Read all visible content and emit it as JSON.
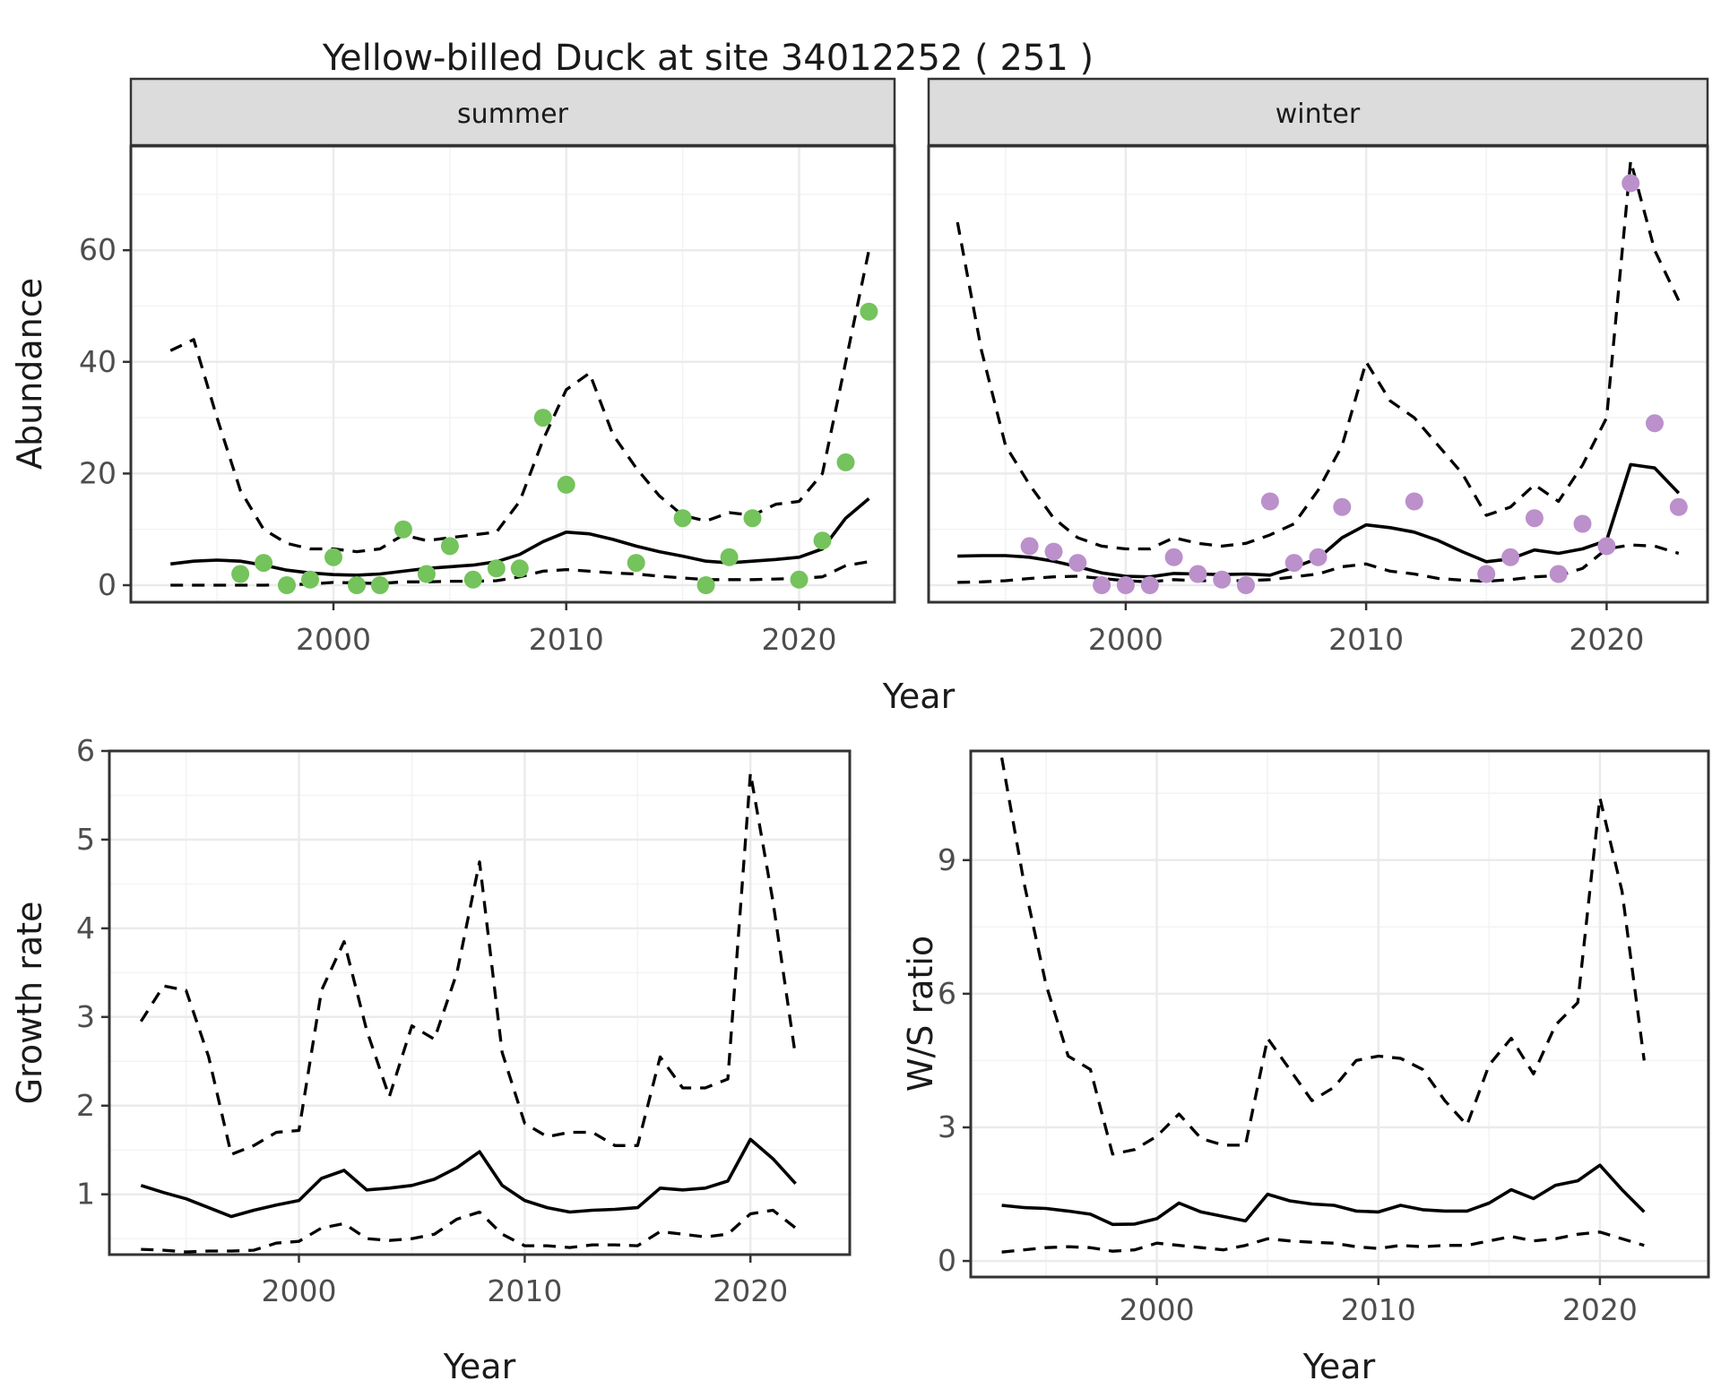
{
  "title": "Yellow-billed Duck at site 34012252 ( 251 )",
  "labels": {
    "x_axis": "Year",
    "y_abundance": "Abundance",
    "y_growth": "Growth rate",
    "y_ws": "W/S ratio"
  },
  "facets": {
    "summer": "summer",
    "winter": "winter"
  },
  "colors": {
    "observed_summer": "#74C35C",
    "observed_winter": "#BB90CB",
    "fit_line": "#000000",
    "ci_line": "#000000",
    "strip_background": "#DCDCDC",
    "panel_border": "#333333",
    "gridline": "#EBEBEB",
    "tick_text": "#4D4D4D"
  },
  "chart_data": [
    {
      "id": "abundance_summer",
      "type": "line",
      "facet": "summer",
      "xlabel": "Year",
      "ylabel": "Abundance",
      "xlim": [
        1991.3,
        2024.1
      ],
      "ylim": [
        -3.05,
        78.65
      ],
      "x_ticks": [
        2000,
        2010,
        2020
      ],
      "x_minor": [
        1995,
        2005,
        2015
      ],
      "y_ticks": [
        0,
        20,
        40,
        60
      ],
      "y_minor": [
        10,
        30,
        50,
        70
      ],
      "grid": true,
      "legend": "none",
      "years": [
        1993,
        1994,
        1995,
        1996,
        1997,
        1998,
        1999,
        2000,
        2001,
        2002,
        2003,
        2004,
        2005,
        2006,
        2007,
        2008,
        2009,
        2010,
        2011,
        2012,
        2013,
        2014,
        2015,
        2016,
        2017,
        2018,
        2019,
        2020,
        2021,
        2022,
        2023
      ],
      "series": [
        {
          "name": "lower_ci",
          "style": "dashed",
          "values": [
            0,
            0,
            0,
            0,
            0,
            0.1,
            0.2,
            0.5,
            0.4,
            0.3,
            0.6,
            0.6,
            0.7,
            0.7,
            0.8,
            1.5,
            2.5,
            2.8,
            2.5,
            2.2,
            2.0,
            1.6,
            1.3,
            1.0,
            1.0,
            1.0,
            1.1,
            1.2,
            1.5,
            3.5,
            4.2
          ]
        },
        {
          "name": "upper_ci",
          "style": "dashed",
          "values": [
            42,
            44,
            30,
            17,
            10,
            7.5,
            6.5,
            6.5,
            6.0,
            6.5,
            9.0,
            8.0,
            8.5,
            9.0,
            9.5,
            15,
            26,
            35,
            38,
            27,
            21,
            16,
            12.5,
            11.5,
            13,
            12.5,
            14.5,
            15,
            20,
            40,
            60
          ]
        },
        {
          "name": "fit",
          "style": "solid",
          "values": [
            3.8,
            4.3,
            4.5,
            4.3,
            3.6,
            2.7,
            2.2,
            1.9,
            1.8,
            2.0,
            2.5,
            3.0,
            3.3,
            3.6,
            4.2,
            5.5,
            7.8,
            9.5,
            9.2,
            8.2,
            7.0,
            6.0,
            5.2,
            4.3,
            4.0,
            4.3,
            4.6,
            5.0,
            6.5,
            12.0,
            15.5
          ]
        }
      ],
      "points": {
        "name": "observed",
        "color": "#74C35C",
        "years": [
          1996,
          1997,
          1998,
          1999,
          2000,
          2001,
          2002,
          2003,
          2004,
          2005,
          2006,
          2007,
          2008,
          2009,
          2010,
          2013,
          2015,
          2016,
          2017,
          2018,
          2020,
          2021,
          2022,
          2023
        ],
        "values": [
          2,
          4,
          0,
          1,
          5,
          0,
          0,
          10,
          2,
          7,
          1,
          3,
          3,
          30,
          18,
          4,
          12,
          0,
          5,
          12,
          1,
          8,
          22,
          49
        ]
      }
    },
    {
      "id": "abundance_winter",
      "type": "line",
      "facet": "winter",
      "xlabel": "Year",
      "ylabel": "Abundance",
      "xlim": [
        1991.8,
        2024.2
      ],
      "ylim": [
        -3.05,
        78.65
      ],
      "x_ticks": [
        2000,
        2010,
        2020
      ],
      "x_minor": [
        1995,
        2005,
        2015
      ],
      "y_ticks": [
        0,
        20,
        40,
        60
      ],
      "y_minor": [
        10,
        30,
        50,
        70
      ],
      "grid": true,
      "legend": "none",
      "years": [
        1993,
        1994,
        1995,
        1996,
        1997,
        1998,
        1999,
        2000,
        2001,
        2002,
        2003,
        2004,
        2005,
        2006,
        2007,
        2008,
        2009,
        2010,
        2011,
        2012,
        2013,
        2014,
        2015,
        2016,
        2017,
        2018,
        2019,
        2020,
        2021,
        2022,
        2023
      ],
      "series": [
        {
          "name": "lower_ci",
          "style": "dashed",
          "values": [
            0.5,
            0.6,
            0.8,
            1.2,
            1.5,
            1.6,
            1.2,
            0.8,
            0.6,
            1.0,
            0.8,
            0.8,
            0.8,
            1.0,
            1.5,
            2.0,
            3.3,
            3.8,
            2.5,
            2.0,
            1.2,
            0.9,
            0.7,
            1.0,
            1.5,
            1.7,
            3.0,
            6.5,
            7.2,
            7.0,
            5.7
          ]
        },
        {
          "name": "upper_ci",
          "style": "dashed",
          "values": [
            65,
            42,
            25,
            18,
            12,
            8.5,
            7,
            6.5,
            6.5,
            8.5,
            7.5,
            7,
            7.5,
            9,
            11,
            17,
            25,
            40,
            33,
            30,
            25,
            20,
            12.5,
            14,
            18,
            15,
            21.5,
            30,
            76,
            60,
            51
          ]
        },
        {
          "name": "fit",
          "style": "solid",
          "values": [
            5.2,
            5.3,
            5.3,
            5.0,
            4.3,
            3.3,
            2.2,
            1.6,
            1.5,
            2.1,
            2.0,
            1.9,
            2.0,
            1.8,
            3.2,
            4.8,
            8.5,
            10.8,
            10.3,
            9.5,
            8.0,
            6.0,
            4.2,
            4.7,
            6.3,
            5.7,
            6.5,
            8.0,
            21.6,
            21.0,
            16.5
          ]
        }
      ],
      "points": {
        "name": "observed",
        "color": "#BB90CB",
        "years": [
          1996,
          1997,
          1998,
          1999,
          2000,
          2001,
          2002,
          2003,
          2004,
          2005,
          2006,
          2007,
          2008,
          2009,
          2012,
          2015,
          2016,
          2017,
          2018,
          2019,
          2020,
          2021,
          2022,
          2023
        ],
        "values": [
          7,
          6,
          4,
          0,
          0,
          0,
          5,
          2,
          1,
          0,
          15,
          4,
          5,
          14,
          15,
          2,
          5,
          12,
          2,
          11,
          7,
          72,
          29,
          14
        ]
      }
    },
    {
      "id": "growth_rate",
      "type": "line",
      "xlabel": "Year",
      "ylabel": "Growth rate",
      "xlim": [
        1991.6,
        2024.4
      ],
      "ylim": [
        0.32,
        6.0
      ],
      "x_ticks": [
        2000,
        2010,
        2020
      ],
      "x_minor": [
        1995,
        2005,
        2015
      ],
      "y_ticks": [
        1,
        2,
        3,
        4,
        5,
        6
      ],
      "y_minor": [
        0.5,
        1.5,
        2.5,
        3.5,
        4.5,
        5.5
      ],
      "grid": true,
      "legend": "none",
      "years": [
        1993,
        1994,
        1995,
        1996,
        1997,
        1998,
        1999,
        2000,
        2001,
        2002,
        2003,
        2004,
        2005,
        2006,
        2007,
        2008,
        2009,
        2010,
        2011,
        2012,
        2013,
        2014,
        2015,
        2016,
        2017,
        2018,
        2019,
        2020,
        2021,
        2022
      ],
      "series": [
        {
          "name": "lower_ci",
          "style": "dashed",
          "values": [
            0.38,
            0.37,
            0.35,
            0.36,
            0.36,
            0.37,
            0.45,
            0.47,
            0.62,
            0.67,
            0.5,
            0.48,
            0.5,
            0.55,
            0.72,
            0.8,
            0.55,
            0.42,
            0.42,
            0.4,
            0.43,
            0.43,
            0.42,
            0.58,
            0.55,
            0.52,
            0.55,
            0.78,
            0.82,
            0.62
          ]
        },
        {
          "name": "upper_ci",
          "style": "dashed",
          "values": [
            2.95,
            3.35,
            3.3,
            2.55,
            1.45,
            1.55,
            1.7,
            1.72,
            3.3,
            3.85,
            2.85,
            2.1,
            2.9,
            2.75,
            3.5,
            4.75,
            2.6,
            1.8,
            1.65,
            1.7,
            1.7,
            1.55,
            1.55,
            2.55,
            2.2,
            2.2,
            2.3,
            5.75,
            4.3,
            2.55
          ]
        },
        {
          "name": "fit",
          "style": "solid",
          "values": [
            1.1,
            1.02,
            0.95,
            0.85,
            0.75,
            0.82,
            0.88,
            0.93,
            1.18,
            1.27,
            1.05,
            1.07,
            1.1,
            1.17,
            1.3,
            1.48,
            1.1,
            0.93,
            0.85,
            0.8,
            0.82,
            0.83,
            0.85,
            1.07,
            1.05,
            1.07,
            1.15,
            1.62,
            1.4,
            1.12
          ]
        }
      ]
    },
    {
      "id": "ws_ratio",
      "type": "line",
      "xlabel": "Year",
      "ylabel": "W/S ratio",
      "xlim": [
        1991.6,
        2024.9
      ],
      "ylim": [
        -0.36,
        11.45
      ],
      "x_ticks": [
        2000,
        2010,
        2020
      ],
      "x_minor": [
        1995,
        2005,
        2015
      ],
      "y_ticks": [
        0,
        3,
        6,
        9
      ],
      "y_minor": [
        1.5,
        4.5,
        7.5,
        10.5
      ],
      "grid": true,
      "legend": "none",
      "years": [
        1993,
        1994,
        1995,
        1996,
        1997,
        1998,
        1999,
        2000,
        2001,
        2002,
        2003,
        2004,
        2005,
        2006,
        2007,
        2008,
        2009,
        2010,
        2011,
        2012,
        2013,
        2014,
        2015,
        2016,
        2017,
        2018,
        2019,
        2020,
        2021,
        2022
      ],
      "series": [
        {
          "name": "lower_ci",
          "style": "dashed",
          "values": [
            0.2,
            0.25,
            0.3,
            0.32,
            0.3,
            0.22,
            0.25,
            0.4,
            0.35,
            0.3,
            0.25,
            0.35,
            0.5,
            0.45,
            0.42,
            0.4,
            0.32,
            0.28,
            0.35,
            0.32,
            0.35,
            0.35,
            0.45,
            0.55,
            0.45,
            0.5,
            0.6,
            0.65,
            0.5,
            0.35
          ]
        },
        {
          "name": "upper_ci",
          "style": "dashed",
          "values": [
            11.3,
            8.5,
            6.2,
            4.6,
            4.3,
            2.4,
            2.5,
            2.8,
            3.3,
            2.75,
            2.6,
            2.6,
            5.0,
            4.3,
            3.6,
            3.9,
            4.5,
            4.6,
            4.55,
            4.3,
            3.6,
            3.05,
            4.4,
            5.0,
            4.2,
            5.3,
            5.8,
            10.4,
            8.3,
            4.5
          ]
        },
        {
          "name": "fit",
          "style": "solid",
          "values": [
            1.25,
            1.2,
            1.18,
            1.12,
            1.05,
            0.82,
            0.83,
            0.95,
            1.3,
            1.1,
            1.0,
            0.9,
            1.5,
            1.35,
            1.28,
            1.25,
            1.12,
            1.1,
            1.25,
            1.15,
            1.12,
            1.12,
            1.3,
            1.6,
            1.4,
            1.7,
            1.8,
            2.15,
            1.6,
            1.1
          ]
        }
      ]
    }
  ]
}
